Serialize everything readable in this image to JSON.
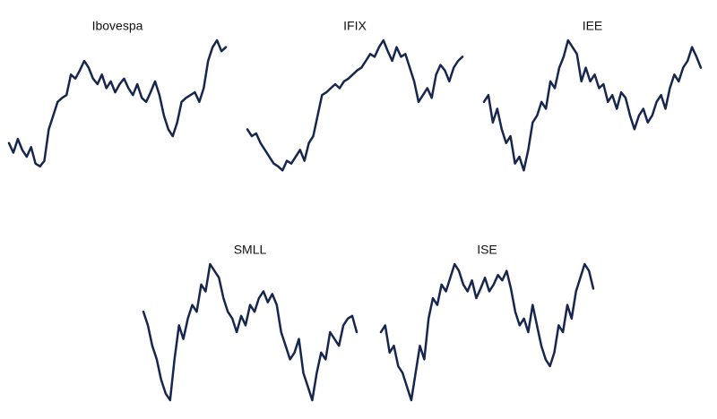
{
  "chart_data": [
    {
      "type": "line",
      "title": "Ibovespa",
      "color": "#16264d",
      "ylim": [
        0,
        100
      ],
      "values": [
        25,
        18,
        28,
        20,
        15,
        22,
        10,
        8,
        12,
        35,
        45,
        55,
        58,
        60,
        75,
        72,
        78,
        85,
        80,
        72,
        68,
        75,
        65,
        70,
        62,
        68,
        72,
        65,
        60,
        68,
        58,
        55,
        62,
        70,
        60,
        45,
        35,
        30,
        40,
        55,
        58,
        60,
        62,
        55,
        65,
        85,
        95,
        100,
        92,
        95
      ]
    },
    {
      "type": "line",
      "title": "IFIX",
      "color": "#16264d",
      "ylim": [
        0,
        100
      ],
      "values": [
        35,
        30,
        32,
        25,
        20,
        15,
        10,
        8,
        5,
        12,
        10,
        15,
        20,
        12,
        25,
        30,
        45,
        60,
        62,
        65,
        68,
        65,
        70,
        72,
        75,
        78,
        80,
        85,
        90,
        88,
        95,
        100,
        92,
        85,
        95,
        88,
        90,
        80,
        70,
        55,
        60,
        65,
        58,
        75,
        82,
        78,
        70,
        80,
        85,
        88
      ]
    },
    {
      "type": "line",
      "title": "IEE",
      "color": "#16264d",
      "ylim": [
        0,
        100
      ],
      "values": [
        55,
        60,
        40,
        50,
        35,
        25,
        30,
        10,
        15,
        5,
        20,
        40,
        45,
        55,
        50,
        70,
        65,
        80,
        88,
        100,
        95,
        90,
        70,
        80,
        70,
        75,
        65,
        68,
        55,
        60,
        50,
        62,
        58,
        45,
        35,
        45,
        50,
        40,
        45,
        55,
        60,
        50,
        65,
        75,
        70,
        80,
        85,
        95,
        88,
        80
      ]
    },
    {
      "type": "line",
      "title": "SMLL",
      "color": "#16264d",
      "ylim": [
        0,
        100
      ],
      "values": [
        65,
        55,
        40,
        30,
        15,
        5,
        0,
        30,
        55,
        45,
        60,
        70,
        65,
        85,
        80,
        100,
        95,
        90,
        75,
        65,
        60,
        50,
        62,
        55,
        70,
        65,
        75,
        80,
        72,
        78,
        70,
        50,
        40,
        30,
        35,
        45,
        20,
        10,
        0,
        20,
        35,
        30,
        50,
        45,
        40,
        55,
        60,
        62,
        50
      ]
    },
    {
      "type": "line",
      "title": "ISE",
      "color": "#16264d",
      "ylim": [
        0,
        100
      ],
      "values": [
        50,
        55,
        35,
        40,
        25,
        20,
        10,
        0,
        20,
        40,
        30,
        60,
        75,
        70,
        85,
        80,
        90,
        100,
        95,
        85,
        80,
        88,
        75,
        82,
        90,
        80,
        85,
        92,
        88,
        95,
        82,
        65,
        55,
        60,
        50,
        70,
        55,
        40,
        30,
        25,
        35,
        55,
        50,
        70,
        60,
        80,
        90,
        100,
        95,
        82
      ]
    }
  ]
}
